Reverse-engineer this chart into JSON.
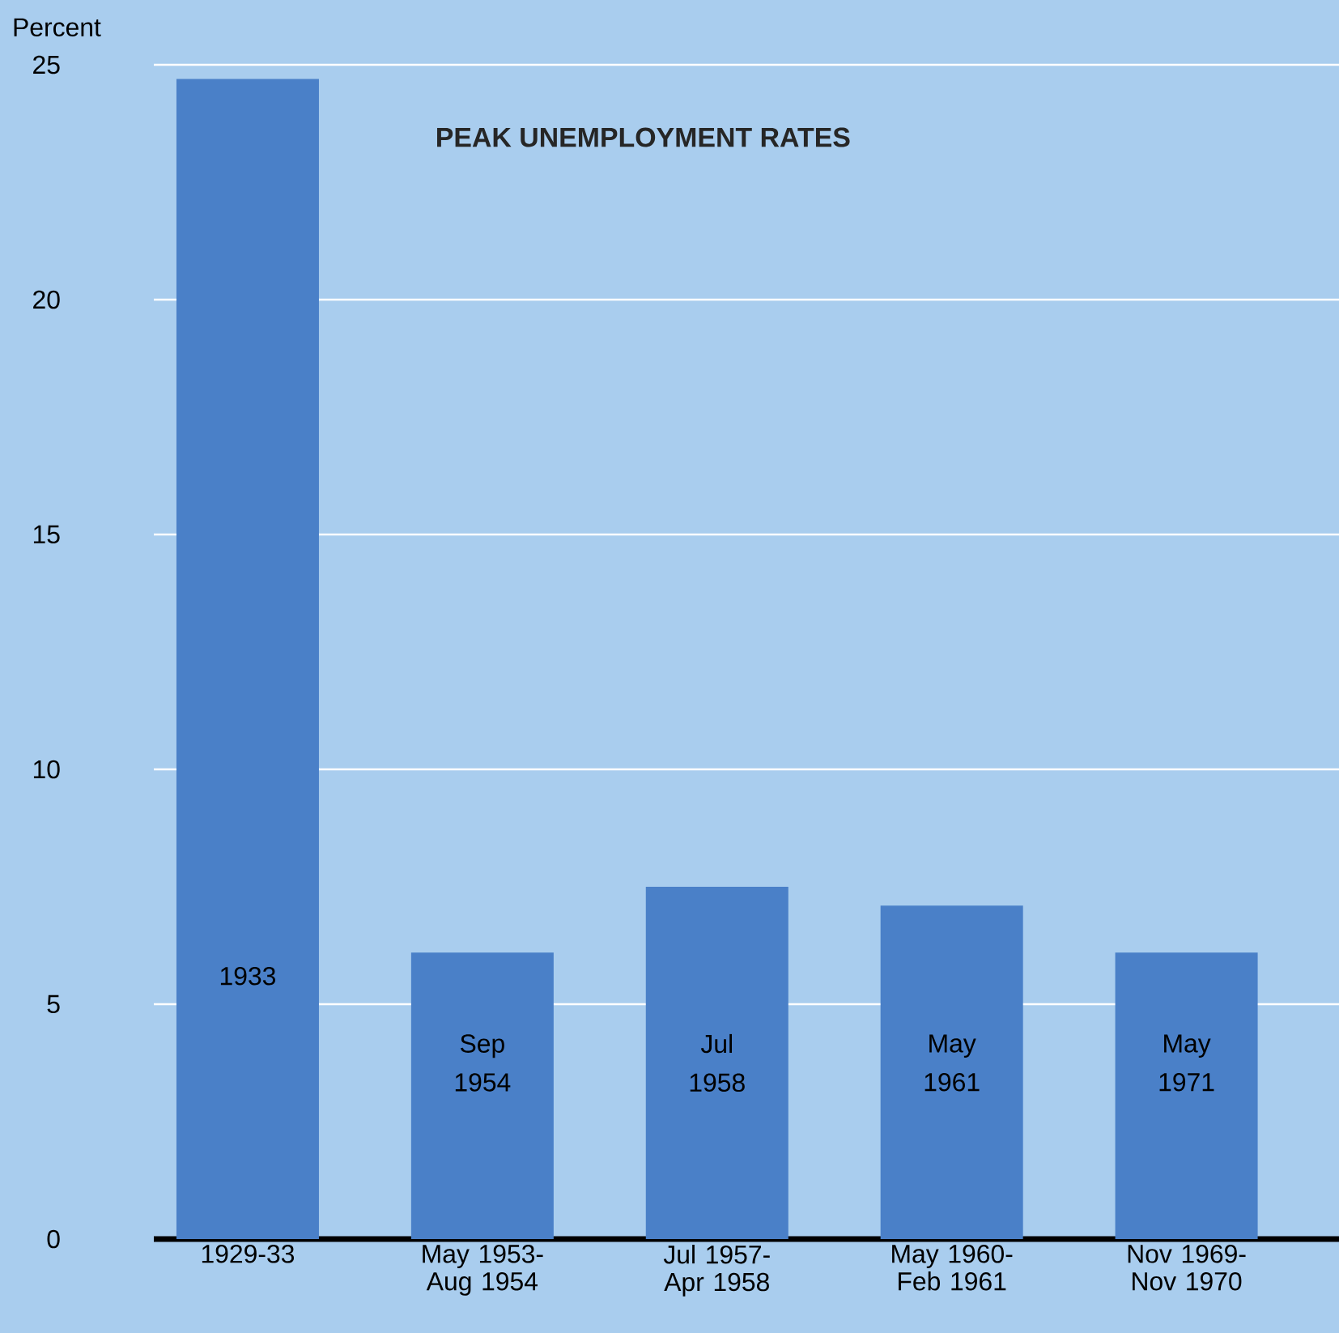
{
  "chart_data": {
    "type": "bar",
    "title": "PEAK UNEMPLOYMENT RATES",
    "ylabel": "Percent",
    "categories": [
      "1929-33",
      "May 1953- Aug 1954",
      "Jul 1957- Apr 1958",
      "May 1960- Feb 1961",
      "Nov 1969- Nov 1970"
    ],
    "values": [
      24.7,
      6.1,
      7.5,
      7.1,
      6.1
    ],
    "color": "#4a80c8",
    "ylim": [
      0,
      25
    ],
    "yticks": [
      0,
      5,
      10,
      15,
      20,
      25
    ],
    "grid": "y",
    "annotations": [
      "1933",
      "Sep 1954",
      "Jul 1958",
      "May 1961",
      "May 1971"
    ]
  }
}
